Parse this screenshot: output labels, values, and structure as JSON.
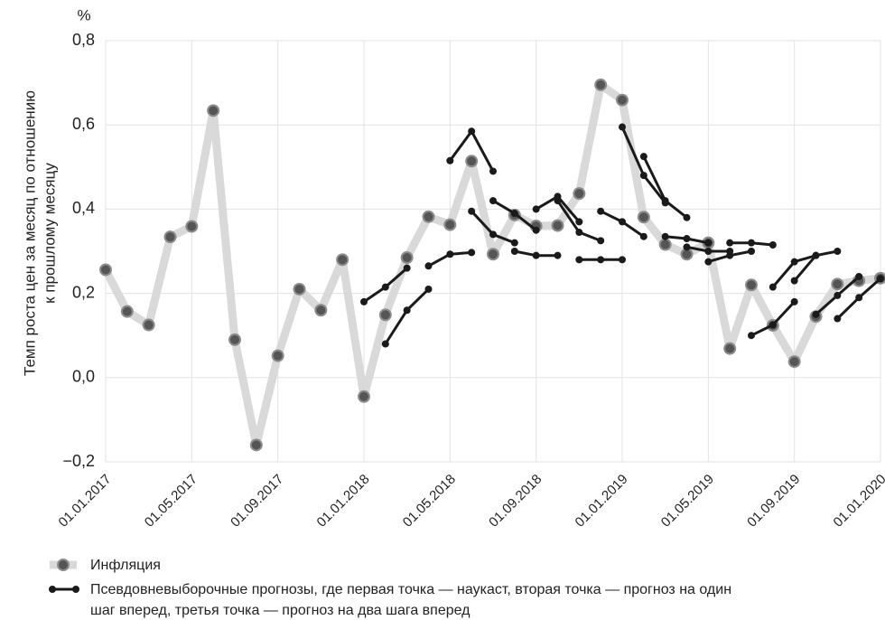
{
  "chart_data": {
    "type": "line",
    "y_unit": "%",
    "ylabel": [
      "Темп роста цен за месяц по отношению",
      "к прошлому месяцу"
    ],
    "categories": [
      "01.01.2017",
      null,
      null,
      null,
      "01.05.2017",
      null,
      null,
      null,
      "01.09.2017",
      null,
      null,
      null,
      "01.01.2018",
      null,
      null,
      null,
      "01.05.2018",
      null,
      null,
      null,
      "01.09.2018",
      null,
      null,
      null,
      "01.01.2019",
      null,
      null,
      null,
      "01.05.2019",
      null,
      null,
      null,
      "01.09.2019",
      null,
      null,
      null,
      "01.01.2020"
    ],
    "ylim": [
      -0.2,
      0.8
    ],
    "yticks": [
      {
        "value": -0.2,
        "label": "−0,2"
      },
      {
        "value": 0,
        "label": "0,0"
      },
      {
        "value": 0.2,
        "label": "0,2"
      },
      {
        "value": 0.4,
        "label": "0,4"
      },
      {
        "value": 0.6,
        "label": "0,6"
      },
      {
        "value": 0.8,
        "label": "0,8"
      }
    ],
    "grid": true,
    "series": [
      {
        "name": "Инфляция",
        "color": "#d9d9d9",
        "marker_color": "#555555",
        "values": [
          0.256,
          0.157,
          0.125,
          0.334,
          0.359,
          0.634,
          0.09,
          -0.16,
          0.052,
          0.21,
          0.16,
          0.28,
          -0.045,
          0.149,
          0.285,
          0.382,
          0.363,
          0.514,
          0.293,
          0.386,
          0.36,
          0.361,
          0.437,
          0.695,
          0.659,
          0.381,
          0.316,
          0.293,
          0.32,
          0.069,
          0.22,
          0.124,
          0.038,
          0.145,
          0.222,
          0.23,
          0.236
        ]
      },
      {
        "name": [
          "Псевдовневыборочные прогнозы, где первая точка — наукаст, вторая точка — прогноз на один",
          "шаг вперед, третья точка — прогноз на два шага вперед"
        ],
        "color": "#1a1a1a",
        "segments": [
          [
            null,
            null,
            null,
            null,
            null,
            null,
            null,
            null,
            null,
            null,
            null,
            null,
            0.18,
            0.215,
            0.26,
            null,
            null,
            null,
            null,
            null,
            null,
            null,
            null,
            null,
            null,
            null,
            null,
            null,
            null,
            null,
            null,
            null,
            null,
            null,
            null,
            null,
            null
          ],
          [
            null,
            null,
            null,
            null,
            null,
            null,
            null,
            null,
            null,
            null,
            null,
            null,
            null,
            0.08,
            0.16,
            0.21,
            null,
            null,
            null,
            null,
            null,
            null,
            null,
            null,
            null,
            null,
            null,
            null,
            null,
            null,
            null,
            null,
            null,
            null,
            null,
            null,
            null
          ],
          [
            null,
            null,
            null,
            null,
            null,
            null,
            null,
            null,
            null,
            null,
            null,
            null,
            null,
            null,
            null,
            0.265,
            0.293,
            0.297,
            null,
            null,
            null,
            null,
            null,
            null,
            null,
            null,
            null,
            null,
            null,
            null,
            null,
            null,
            null,
            null,
            null,
            null,
            null
          ],
          [
            null,
            null,
            null,
            null,
            null,
            null,
            null,
            null,
            null,
            null,
            null,
            null,
            null,
            null,
            null,
            null,
            0.515,
            0.585,
            0.49,
            null,
            null,
            null,
            null,
            null,
            null,
            null,
            null,
            null,
            null,
            null,
            null,
            null,
            null,
            null,
            null,
            null,
            null
          ],
          [
            null,
            null,
            null,
            null,
            null,
            null,
            null,
            null,
            null,
            null,
            null,
            null,
            null,
            null,
            null,
            null,
            null,
            0.395,
            0.34,
            0.32,
            null,
            null,
            null,
            null,
            null,
            null,
            null,
            null,
            null,
            null,
            null,
            null,
            null,
            null,
            null,
            null,
            null
          ],
          [
            null,
            null,
            null,
            null,
            null,
            null,
            null,
            null,
            null,
            null,
            null,
            null,
            null,
            null,
            null,
            null,
            null,
            null,
            0.42,
            0.39,
            0.35,
            null,
            null,
            null,
            null,
            null,
            null,
            null,
            null,
            null,
            null,
            null,
            null,
            null,
            null,
            null,
            null
          ],
          [
            null,
            null,
            null,
            null,
            null,
            null,
            null,
            null,
            null,
            null,
            null,
            null,
            null,
            null,
            null,
            null,
            null,
            null,
            null,
            0.3,
            0.29,
            0.29,
            null,
            null,
            null,
            null,
            null,
            null,
            null,
            null,
            null,
            null,
            null,
            null,
            null,
            null,
            null
          ],
          [
            null,
            null,
            null,
            null,
            null,
            null,
            null,
            null,
            null,
            null,
            null,
            null,
            null,
            null,
            null,
            null,
            null,
            null,
            null,
            null,
            0.4,
            0.43,
            0.37,
            null,
            null,
            null,
            null,
            null,
            null,
            null,
            null,
            null,
            null,
            null,
            null,
            null,
            null
          ],
          [
            null,
            null,
            null,
            null,
            null,
            null,
            null,
            null,
            null,
            null,
            null,
            null,
            null,
            null,
            null,
            null,
            null,
            null,
            null,
            null,
            null,
            0.42,
            0.345,
            0.325,
            null,
            null,
            null,
            null,
            null,
            null,
            null,
            null,
            null,
            null,
            null,
            null,
            null
          ],
          [
            null,
            null,
            null,
            null,
            null,
            null,
            null,
            null,
            null,
            null,
            null,
            null,
            null,
            null,
            null,
            null,
            null,
            null,
            null,
            null,
            null,
            null,
            0.28,
            0.28,
            0.28,
            null,
            null,
            null,
            null,
            null,
            null,
            null,
            null,
            null,
            null,
            null,
            null
          ],
          [
            null,
            null,
            null,
            null,
            null,
            null,
            null,
            null,
            null,
            null,
            null,
            null,
            null,
            null,
            null,
            null,
            null,
            null,
            null,
            null,
            null,
            null,
            null,
            0.395,
            0.37,
            0.335,
            null,
            null,
            null,
            null,
            null,
            null,
            null,
            null,
            null,
            null,
            null
          ],
          [
            null,
            null,
            null,
            null,
            null,
            null,
            null,
            null,
            null,
            null,
            null,
            null,
            null,
            null,
            null,
            null,
            null,
            null,
            null,
            null,
            null,
            null,
            null,
            null,
            0.595,
            0.48,
            0.415,
            null,
            null,
            null,
            null,
            null,
            null,
            null,
            null,
            null,
            null
          ],
          [
            null,
            null,
            null,
            null,
            null,
            null,
            null,
            null,
            null,
            null,
            null,
            null,
            null,
            null,
            null,
            null,
            null,
            null,
            null,
            null,
            null,
            null,
            null,
            null,
            null,
            0.525,
            0.42,
            0.38,
            null,
            null,
            null,
            null,
            null,
            null,
            null,
            null,
            null
          ],
          [
            null,
            null,
            null,
            null,
            null,
            null,
            null,
            null,
            null,
            null,
            null,
            null,
            null,
            null,
            null,
            null,
            null,
            null,
            null,
            null,
            null,
            null,
            null,
            null,
            null,
            null,
            0.335,
            0.33,
            0.32,
            null,
            null,
            null,
            null,
            null,
            null,
            null,
            null
          ],
          [
            null,
            null,
            null,
            null,
            null,
            null,
            null,
            null,
            null,
            null,
            null,
            null,
            null,
            null,
            null,
            null,
            null,
            null,
            null,
            null,
            null,
            null,
            null,
            null,
            null,
            null,
            null,
            0.31,
            0.3,
            0.3,
            null,
            null,
            null,
            null,
            null,
            null,
            null
          ],
          [
            null,
            null,
            null,
            null,
            null,
            null,
            null,
            null,
            null,
            null,
            null,
            null,
            null,
            null,
            null,
            null,
            null,
            null,
            null,
            null,
            null,
            null,
            null,
            null,
            null,
            null,
            null,
            null,
            0.275,
            0.29,
            0.3,
            null,
            null,
            null,
            null,
            null,
            null
          ],
          [
            null,
            null,
            null,
            null,
            null,
            null,
            null,
            null,
            null,
            null,
            null,
            null,
            null,
            null,
            null,
            null,
            null,
            null,
            null,
            null,
            null,
            null,
            null,
            null,
            null,
            null,
            null,
            null,
            null,
            0.32,
            0.32,
            0.315,
            null,
            null,
            null,
            null,
            null
          ],
          [
            null,
            null,
            null,
            null,
            null,
            null,
            null,
            null,
            null,
            null,
            null,
            null,
            null,
            null,
            null,
            null,
            null,
            null,
            null,
            null,
            null,
            null,
            null,
            null,
            null,
            null,
            null,
            null,
            null,
            null,
            0.1,
            0.125,
            0.18,
            null,
            null,
            null,
            null
          ],
          [
            null,
            null,
            null,
            null,
            null,
            null,
            null,
            null,
            null,
            null,
            null,
            null,
            null,
            null,
            null,
            null,
            null,
            null,
            null,
            null,
            null,
            null,
            null,
            null,
            null,
            null,
            null,
            null,
            null,
            null,
            null,
            0.215,
            0.275,
            0.29,
            null,
            null,
            null
          ],
          [
            null,
            null,
            null,
            null,
            null,
            null,
            null,
            null,
            null,
            null,
            null,
            null,
            null,
            null,
            null,
            null,
            null,
            null,
            null,
            null,
            null,
            null,
            null,
            null,
            null,
            null,
            null,
            null,
            null,
            null,
            null,
            null,
            0.23,
            0.29,
            0.3,
            null,
            null
          ],
          [
            null,
            null,
            null,
            null,
            null,
            null,
            null,
            null,
            null,
            null,
            null,
            null,
            null,
            null,
            null,
            null,
            null,
            null,
            null,
            null,
            null,
            null,
            null,
            null,
            null,
            null,
            null,
            null,
            null,
            null,
            null,
            null,
            null,
            0.15,
            0.195,
            0.24,
            null
          ],
          [
            null,
            null,
            null,
            null,
            null,
            null,
            null,
            null,
            null,
            null,
            null,
            null,
            null,
            null,
            null,
            null,
            null,
            null,
            null,
            null,
            null,
            null,
            null,
            null,
            null,
            null,
            null,
            null,
            null,
            null,
            null,
            null,
            null,
            null,
            0.14,
            0.19,
            0.235
          ]
        ]
      }
    ]
  }
}
